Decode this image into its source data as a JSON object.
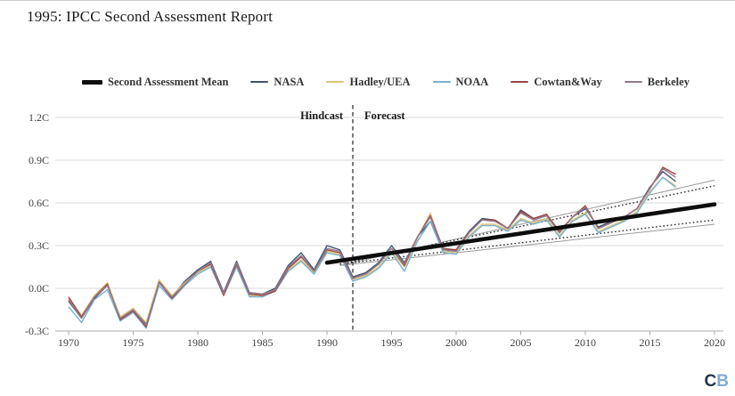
{
  "page": {
    "title": "1995: IPCC Second Assessment Report"
  },
  "legend": {
    "items": [
      {
        "label": "Second Assessment Mean",
        "color": "#0d0d0d",
        "thick": true
      },
      {
        "label": "NASA",
        "color": "#41536b",
        "thick": false
      },
      {
        "label": "Hadley/UEA",
        "color": "#dfc57e",
        "thick": false
      },
      {
        "label": "NOAA",
        "color": "#79b1cc",
        "thick": false
      },
      {
        "label": "Cowtan&Way",
        "color": "#9c4742",
        "thick": false
      },
      {
        "label": "Berkeley",
        "color": "#93798c",
        "thick": false
      }
    ]
  },
  "annotations": {
    "hindcast_label": "Hindcast",
    "forecast_label": "Forecast"
  },
  "logo": {
    "letters": [
      {
        "char": "C",
        "color": "#1f3850"
      },
      {
        "char": "B",
        "color": "#83abd0"
      }
    ]
  },
  "chart_data": {
    "type": "line",
    "title": "1995: IPCC Second Assessment Report",
    "grid": true,
    "legend_position": "top",
    "xlim": [
      1969,
      2021
    ],
    "ylim": [
      -0.3,
      1.2
    ],
    "x_ticks": [
      1970,
      1975,
      1980,
      1985,
      1990,
      1995,
      2000,
      2005,
      2010,
      2015,
      2020
    ],
    "y_ticks": [
      {
        "label": "1.2C",
        "value": 1.2
      },
      {
        "label": "0.9C",
        "value": 0.9
      },
      {
        "label": "0.6C",
        "value": 0.6
      },
      {
        "label": "0.3C",
        "value": 0.3
      },
      {
        "label": "0.0C",
        "value": 0.0
      },
      {
        "label": "-0.3C",
        "value": -0.3
      }
    ],
    "years": [
      1970,
      1971,
      1972,
      1973,
      1974,
      1975,
      1976,
      1977,
      1978,
      1979,
      1980,
      1981,
      1982,
      1983,
      1984,
      1985,
      1986,
      1987,
      1988,
      1989,
      1990,
      1991,
      1992,
      1993,
      1994,
      1995,
      1996,
      1997,
      1998,
      1999,
      2000,
      2001,
      2002,
      2003,
      2004,
      2005,
      2006,
      2007,
      2008,
      2009,
      2010,
      2011,
      2012,
      2013,
      2014,
      2015,
      2016,
      2017
    ],
    "series": [
      {
        "name": "NASA",
        "color": "#41536b",
        "values": [
          -0.09,
          -0.21,
          -0.07,
          0.02,
          -0.21,
          -0.15,
          -0.25,
          0.05,
          -0.06,
          0.05,
          0.13,
          0.19,
          -0.03,
          0.19,
          -0.03,
          -0.04,
          0.0,
          0.16,
          0.25,
          0.13,
          0.3,
          0.27,
          0.08,
          0.11,
          0.18,
          0.3,
          0.18,
          0.36,
          0.47,
          0.27,
          0.27,
          0.4,
          0.49,
          0.48,
          0.42,
          0.55,
          0.49,
          0.52,
          0.39,
          0.5,
          0.56,
          0.43,
          0.47,
          0.5,
          0.56,
          0.71,
          0.82,
          0.75
        ]
      },
      {
        "name": "Hadley/UEA",
        "color": "#dfc57e",
        "values": [
          -0.07,
          -0.19,
          -0.05,
          0.04,
          -0.2,
          -0.14,
          -0.24,
          0.06,
          -0.05,
          0.04,
          0.11,
          0.16,
          -0.04,
          0.16,
          -0.05,
          -0.06,
          -0.01,
          0.13,
          0.2,
          0.11,
          0.26,
          0.24,
          0.06,
          0.09,
          0.15,
          0.26,
          0.15,
          0.35,
          0.53,
          0.26,
          0.25,
          0.37,
          0.45,
          0.45,
          0.41,
          0.49,
          0.46,
          0.49,
          0.37,
          0.48,
          0.53,
          0.4,
          0.44,
          0.48,
          0.54,
          0.68,
          0.78,
          0.72
        ]
      },
      {
        "name": "NOAA",
        "color": "#79b1cc",
        "values": [
          -0.13,
          -0.24,
          -0.08,
          -0.01,
          -0.23,
          -0.17,
          -0.28,
          0.02,
          -0.08,
          0.02,
          0.1,
          0.15,
          -0.05,
          0.15,
          -0.06,
          -0.06,
          -0.02,
          0.12,
          0.19,
          0.1,
          0.25,
          0.23,
          0.05,
          0.08,
          0.14,
          0.25,
          0.12,
          0.33,
          0.47,
          0.25,
          0.24,
          0.36,
          0.44,
          0.44,
          0.4,
          0.48,
          0.45,
          0.48,
          0.36,
          0.47,
          0.52,
          0.39,
          0.43,
          0.47,
          0.53,
          0.67,
          0.78,
          0.71
        ]
      },
      {
        "name": "Cowtan&Way",
        "color": "#9c4742",
        "values": [
          -0.06,
          -0.2,
          -0.06,
          0.03,
          -0.22,
          -0.16,
          -0.27,
          0.04,
          -0.07,
          0.03,
          0.12,
          0.17,
          -0.05,
          0.17,
          -0.04,
          -0.05,
          -0.02,
          0.14,
          0.22,
          0.12,
          0.27,
          0.25,
          0.07,
          0.1,
          0.17,
          0.28,
          0.16,
          0.36,
          0.51,
          0.28,
          0.27,
          0.39,
          0.48,
          0.48,
          0.42,
          0.54,
          0.49,
          0.52,
          0.4,
          0.5,
          0.58,
          0.42,
          0.46,
          0.5,
          0.56,
          0.7,
          0.85,
          0.8
        ]
      },
      {
        "name": "Berkeley",
        "color": "#93798c",
        "values": [
          -0.08,
          -0.21,
          -0.06,
          0.02,
          -0.21,
          -0.15,
          -0.26,
          0.04,
          -0.06,
          0.03,
          0.12,
          0.18,
          -0.04,
          0.18,
          -0.03,
          -0.04,
          -0.01,
          0.15,
          0.23,
          0.12,
          0.28,
          0.26,
          0.07,
          0.1,
          0.17,
          0.28,
          0.17,
          0.36,
          0.5,
          0.27,
          0.26,
          0.39,
          0.48,
          0.47,
          0.42,
          0.53,
          0.48,
          0.51,
          0.39,
          0.5,
          0.57,
          0.42,
          0.46,
          0.5,
          0.56,
          0.7,
          0.84,
          0.78
        ]
      }
    ],
    "projection": {
      "mean": {
        "name": "Second Assessment Mean",
        "color": "#0d0d0d",
        "points": [
          [
            1990,
            0.18
          ],
          [
            2020,
            0.59
          ]
        ]
      },
      "range": [
        {
          "style": "solid-gray",
          "points": [
            [
              1991,
              0.16
            ],
            [
              2020,
              0.76
            ]
          ]
        },
        {
          "style": "dotted",
          "points": [
            [
              1991,
              0.17
            ],
            [
              2020,
              0.72
            ]
          ]
        },
        {
          "style": "dotted",
          "points": [
            [
              1991,
              0.17
            ],
            [
              2020,
              0.48
            ]
          ]
        },
        {
          "style": "solid-gray",
          "points": [
            [
              1991,
              0.16
            ],
            [
              2020,
              0.45
            ]
          ]
        }
      ]
    },
    "divider": {
      "year": 1992
    }
  }
}
